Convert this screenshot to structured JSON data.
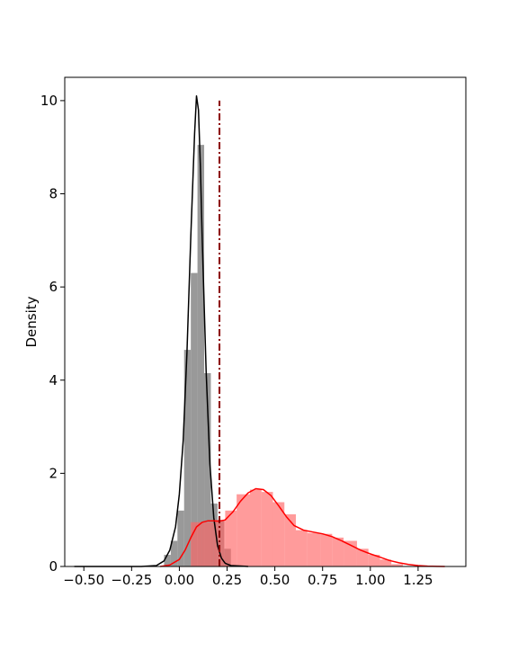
{
  "chart_data": {
    "type": "histogram",
    "title": "",
    "xlabel": "",
    "ylabel": "Density",
    "xlim": [
      -0.6,
      1.5
    ],
    "ylim": [
      0,
      10.5
    ],
    "x_ticks": [
      "−0.50",
      "−0.25",
      "0.00",
      "0.25",
      "0.50",
      "0.75",
      "1.00",
      "1.25"
    ],
    "x_tick_values": [
      -0.5,
      -0.25,
      0.0,
      0.25,
      0.5,
      0.75,
      1.0,
      1.25
    ],
    "y_ticks": [
      "0",
      "2",
      "4",
      "6",
      "8",
      "10"
    ],
    "y_tick_values": [
      0,
      2,
      4,
      6,
      8,
      10
    ],
    "grid": false,
    "legend": "none",
    "series": [
      {
        "kind": "histogram",
        "color": "#808080",
        "opacity": 0.8,
        "bins": [
          {
            "x0": -0.08,
            "x1": -0.045,
            "density": 0.25
          },
          {
            "x0": -0.045,
            "x1": -0.01,
            "density": 0.55
          },
          {
            "x0": -0.01,
            "x1": 0.025,
            "density": 1.2
          },
          {
            "x0": 0.025,
            "x1": 0.06,
            "density": 4.65
          },
          {
            "x0": 0.06,
            "x1": 0.095,
            "density": 6.3
          },
          {
            "x0": 0.095,
            "x1": 0.13,
            "density": 9.05
          },
          {
            "x0": 0.13,
            "x1": 0.165,
            "density": 4.15
          },
          {
            "x0": 0.165,
            "x1": 0.2,
            "density": 1.35
          },
          {
            "x0": 0.2,
            "x1": 0.235,
            "density": 1.0
          },
          {
            "x0": 0.235,
            "x1": 0.27,
            "density": 0.38
          }
        ]
      },
      {
        "kind": "kde",
        "color": "#000000",
        "x": [
          -0.55,
          -0.2,
          -0.12,
          -0.08,
          -0.05,
          -0.02,
          0.0,
          0.02,
          0.04,
          0.06,
          0.08,
          0.09,
          0.1,
          0.11,
          0.12,
          0.14,
          0.16,
          0.18,
          0.2,
          0.22,
          0.24,
          0.27,
          0.32,
          0.36
        ],
        "y": [
          0.0,
          0.0,
          0.02,
          0.12,
          0.35,
          0.85,
          1.55,
          2.7,
          4.6,
          7.1,
          9.3,
          10.1,
          9.8,
          8.6,
          7.0,
          4.2,
          2.2,
          1.05,
          0.45,
          0.18,
          0.07,
          0.02,
          0.01,
          0.0
        ]
      },
      {
        "kind": "histogram",
        "color": "#ff6666",
        "opacity": 0.65,
        "bins": [
          {
            "x0": 0.06,
            "x1": 0.12,
            "density": 0.95
          },
          {
            "x0": 0.12,
            "x1": 0.18,
            "density": 0.95
          },
          {
            "x0": 0.18,
            "x1": 0.24,
            "density": 1.0
          },
          {
            "x0": 0.24,
            "x1": 0.3,
            "density": 1.2
          },
          {
            "x0": 0.3,
            "x1": 0.37,
            "density": 1.55
          },
          {
            "x0": 0.37,
            "x1": 0.43,
            "density": 1.65
          },
          {
            "x0": 0.43,
            "x1": 0.49,
            "density": 1.6
          },
          {
            "x0": 0.49,
            "x1": 0.55,
            "density": 1.38
          },
          {
            "x0": 0.55,
            "x1": 0.61,
            "density": 1.12
          },
          {
            "x0": 0.61,
            "x1": 0.67,
            "density": 0.78
          },
          {
            "x0": 0.67,
            "x1": 0.74,
            "density": 0.72
          },
          {
            "x0": 0.74,
            "x1": 0.8,
            "density": 0.7
          },
          {
            "x0": 0.8,
            "x1": 0.86,
            "density": 0.62
          },
          {
            "x0": 0.86,
            "x1": 0.93,
            "density": 0.55
          },
          {
            "x0": 0.93,
            "x1": 0.99,
            "density": 0.38
          },
          {
            "x0": 0.99,
            "x1": 1.05,
            "density": 0.25
          },
          {
            "x0": 1.05,
            "x1": 1.11,
            "density": 0.15
          },
          {
            "x0": 1.11,
            "x1": 1.17,
            "density": 0.05
          }
        ]
      },
      {
        "kind": "kde",
        "color": "#ff0000",
        "x": [
          -0.1,
          -0.05,
          0.0,
          0.03,
          0.06,
          0.09,
          0.12,
          0.15,
          0.18,
          0.21,
          0.24,
          0.28,
          0.32,
          0.36,
          0.4,
          0.44,
          0.48,
          0.52,
          0.56,
          0.6,
          0.65,
          0.7,
          0.75,
          0.8,
          0.85,
          0.9,
          0.95,
          1.0,
          1.05,
          1.1,
          1.15,
          1.2,
          1.25,
          1.3,
          1.35,
          1.39
        ],
        "y": [
          0.0,
          0.03,
          0.15,
          0.35,
          0.62,
          0.85,
          0.95,
          0.98,
          0.98,
          0.97,
          1.0,
          1.17,
          1.4,
          1.58,
          1.67,
          1.65,
          1.52,
          1.3,
          1.07,
          0.88,
          0.78,
          0.74,
          0.7,
          0.64,
          0.55,
          0.45,
          0.35,
          0.27,
          0.2,
          0.13,
          0.08,
          0.045,
          0.02,
          0.008,
          0.002,
          0.0
        ]
      }
    ],
    "reference_line": {
      "x": 0.21,
      "color": "#8b0000",
      "linestyle": "dashdot",
      "y0": 0,
      "y1": 10.0
    }
  }
}
